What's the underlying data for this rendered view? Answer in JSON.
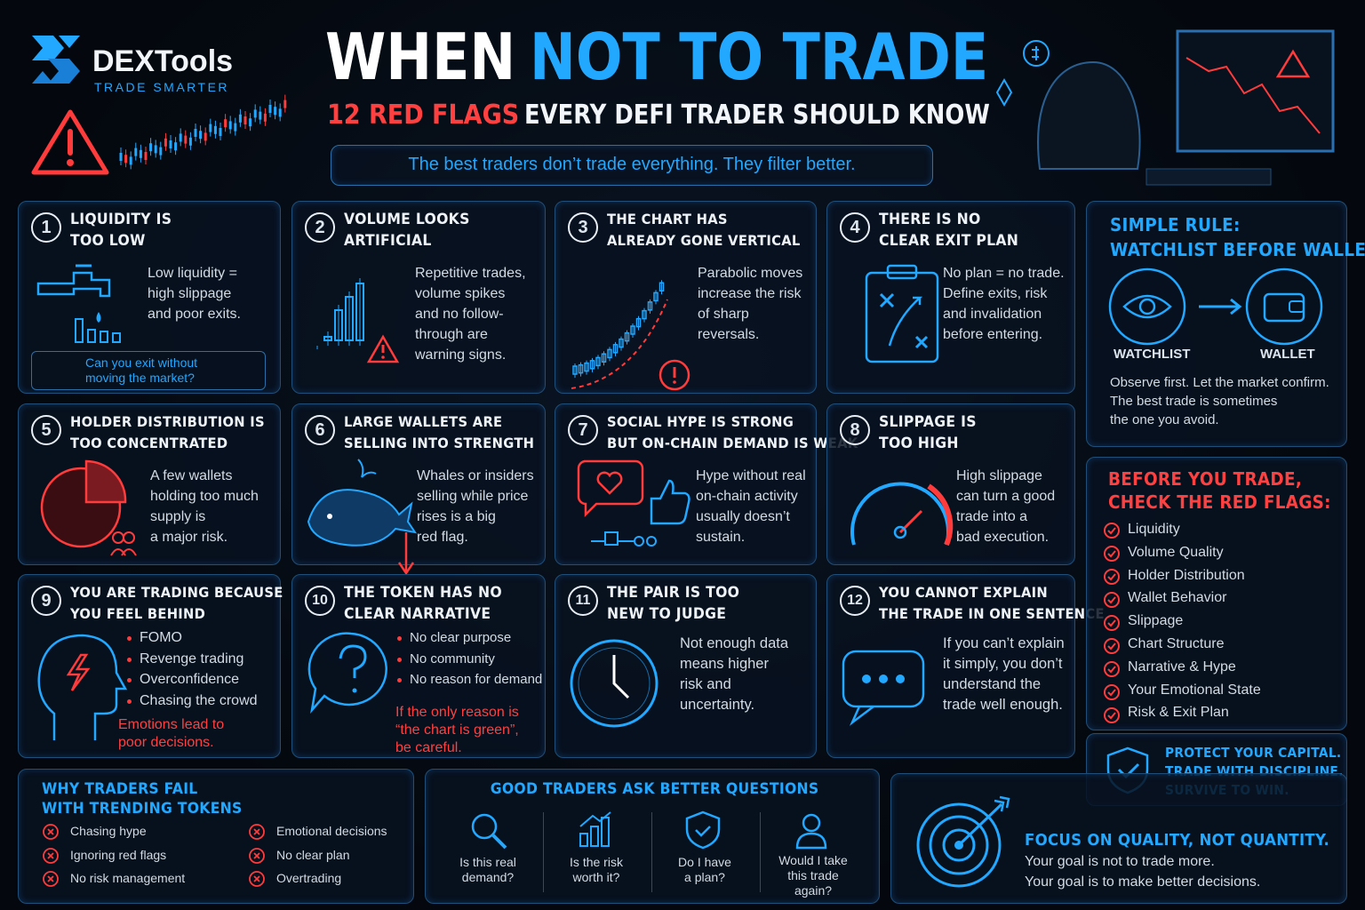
{
  "brand": {
    "name": "DEXTools",
    "tagline": "TRADE SMARTER"
  },
  "header": {
    "title_a": "WHEN",
    "title_b": "NOT TO TRADE",
    "subtitle_a": "12 RED FLAGS",
    "subtitle_b": "EVERY DEFI TRADER SHOULD KNOW",
    "tagline": "The best traders don’t trade everything. They filter better."
  },
  "cards": [
    {
      "number": 1,
      "title": [
        "LIQUIDITY IS",
        "TOO LOW"
      ],
      "body": [
        "Low liquidity =",
        "high slippage",
        "and poor exits."
      ],
      "note": [
        "Can you exit without",
        "moving the market?"
      ]
    },
    {
      "number": 2,
      "title": [
        "VOLUME LOOKS",
        "ARTIFICIAL"
      ],
      "body": [
        "Repetitive trades,",
        "volume spikes",
        "and no follow-",
        "through are",
        "warning signs."
      ]
    },
    {
      "number": 3,
      "title": [
        "THE CHART HAS",
        "ALREADY GONE VERTICAL"
      ],
      "body": [
        "Parabolic moves",
        "increase the risk",
        "of sharp",
        "reversals."
      ]
    },
    {
      "number": 4,
      "title": [
        "THERE IS NO",
        "CLEAR EXIT PLAN"
      ],
      "body": [
        "No plan = no trade.",
        "Define exits, risk",
        "and invalidation",
        "before entering."
      ]
    },
    {
      "number": 5,
      "title": [
        "HOLDER DISTRIBUTION IS",
        "TOO CONCENTRATED"
      ],
      "body": [
        "A few wallets",
        "holding too much",
        "supply is",
        "a major risk."
      ]
    },
    {
      "number": 6,
      "title": [
        "LARGE WALLETS ARE",
        "SELLING INTO STRENGTH"
      ],
      "body": [
        "Whales or insiders",
        "selling while price",
        "rises is a big",
        "red flag."
      ]
    },
    {
      "number": 7,
      "title": [
        "SOCIAL HYPE IS STRONG",
        "BUT ON-CHAIN DEMAND IS WEAK"
      ],
      "body": [
        "Hype without real",
        "on-chain activity",
        "usually doesn’t",
        "sustain."
      ]
    },
    {
      "number": 8,
      "title": [
        "SLIPPAGE IS",
        "TOO HIGH"
      ],
      "body": [
        "High slippage",
        "can turn a good",
        "trade into a",
        "bad execution."
      ]
    },
    {
      "number": 9,
      "title": [
        "YOU ARE TRADING BECAUSE",
        "YOU FEEL BEHIND"
      ],
      "bullets": [
        "FOMO",
        "Revenge trading",
        "Overconfidence",
        "Chasing the crowd"
      ],
      "warning": [
        "Emotions lead to",
        "poor decisions."
      ]
    },
    {
      "number": 10,
      "title": [
        "THE TOKEN HAS NO",
        "CLEAR NARRATIVE"
      ],
      "bullets": [
        "No clear purpose",
        "No community",
        "No reason for demand"
      ],
      "warning": [
        "If the only reason is",
        "“the chart is green”,",
        "be careful."
      ]
    },
    {
      "number": 11,
      "title": [
        "THE PAIR IS TOO",
        "NEW TO JUDGE"
      ],
      "body": [
        "Not enough data",
        "means higher",
        "risk and",
        "uncertainty."
      ]
    },
    {
      "number": 12,
      "title": [
        "YOU CANNOT EXPLAIN",
        "THE TRADE IN ONE SENTENCE"
      ],
      "body": [
        "If you can’t explain",
        "it simply, you don’t",
        "understand the",
        "trade well enough."
      ]
    }
  ],
  "rule": {
    "title": [
      "SIMPLE RULE:",
      "WATCHLIST BEFORE WALLET"
    ],
    "left": "WATCHLIST",
    "right": "WALLET",
    "body": [
      "Observe first. Let the market confirm.",
      "The best trade is sometimes",
      "the one you avoid."
    ]
  },
  "checklist": {
    "title": [
      "BEFORE YOU TRADE,",
      "CHECK THE RED FLAGS:"
    ],
    "items": [
      "Liquidity",
      "Volume Quality",
      "Holder Distribution",
      "Wallet Behavior",
      "Slippage",
      "Chart Structure",
      "Narrative & Hype",
      "Your Emotional State",
      "Risk & Exit Plan"
    ]
  },
  "protect": {
    "lines": [
      "PROTECT YOUR CAPITAL.",
      "TRADE WITH DISCIPLINE.",
      "SURVIVE TO WIN."
    ]
  },
  "why_fail": {
    "title": [
      "WHY TRADERS FAIL",
      "WITH TRENDING TOKENS"
    ],
    "items": [
      "Chasing hype",
      "Ignoring red flags",
      "No risk management",
      "Emotional decisions",
      "No clear plan",
      "Overtrading"
    ]
  },
  "questions": {
    "title": "GOOD TRADERS ASK BETTER QUESTIONS",
    "items": [
      [
        "Is this real",
        "demand?"
      ],
      [
        "Is the risk",
        "worth it?"
      ],
      [
        "Do I have",
        "a plan?"
      ],
      [
        "Would I take",
        "this trade",
        "again?"
      ]
    ]
  },
  "focus": {
    "title": "FOCUS ON QUALITY, NOT QUANTITY.",
    "lines": [
      "Your goal is not to trade more.",
      "Your goal is to make better decisions."
    ]
  }
}
